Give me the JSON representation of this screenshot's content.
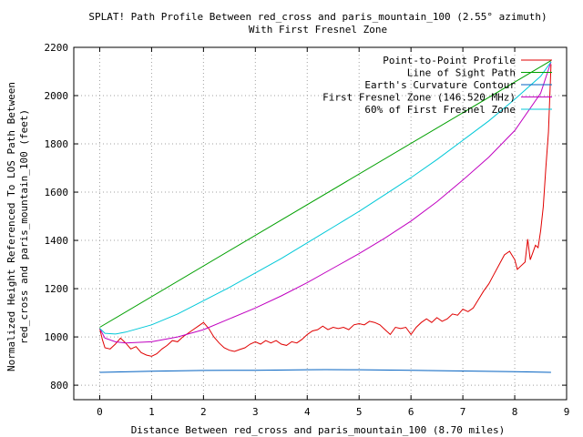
{
  "chart_data": {
    "type": "line",
    "title": "SPLAT! Path Profile Between red_cross and paris_mountain_100 (2.55° azimuth)",
    "subtitle": "With First Fresnel Zone",
    "xlabel": "Distance Between red_cross and paris_mountain_100 (8.70 miles)",
    "ylabel_line1": "Normalized Height Referenced To LOS Path Between",
    "ylabel_line2": "red_cross and paris_mountain_100 (feet)",
    "xlim": [
      -0.5,
      9
    ],
    "ylim": [
      740,
      2200
    ],
    "x_ticks": [
      0,
      1,
      2,
      3,
      4,
      5,
      6,
      7,
      8,
      9
    ],
    "y_ticks": [
      800,
      1000,
      1200,
      1400,
      1600,
      1800,
      2000,
      2200
    ],
    "grid": true,
    "grid_style": "dotted",
    "legend_position": "top-right",
    "series": [
      {
        "name": "Point-to-Point Profile",
        "color": "#e00000",
        "points": [
          [
            0.0,
            1035
          ],
          [
            0.05,
            990
          ],
          [
            0.1,
            955
          ],
          [
            0.2,
            950
          ],
          [
            0.3,
            970
          ],
          [
            0.4,
            995
          ],
          [
            0.5,
            975
          ],
          [
            0.6,
            950
          ],
          [
            0.7,
            960
          ],
          [
            0.8,
            935
          ],
          [
            0.9,
            925
          ],
          [
            1.0,
            920
          ],
          [
            1.1,
            930
          ],
          [
            1.2,
            950
          ],
          [
            1.3,
            965
          ],
          [
            1.4,
            985
          ],
          [
            1.5,
            980
          ],
          [
            1.6,
            1000
          ],
          [
            1.7,
            1015
          ],
          [
            1.8,
            1030
          ],
          [
            1.9,
            1045
          ],
          [
            2.0,
            1060
          ],
          [
            2.1,
            1035
          ],
          [
            2.2,
            1000
          ],
          [
            2.3,
            975
          ],
          [
            2.4,
            955
          ],
          [
            2.5,
            945
          ],
          [
            2.6,
            940
          ],
          [
            2.7,
            948
          ],
          [
            2.8,
            955
          ],
          [
            2.9,
            970
          ],
          [
            3.0,
            980
          ],
          [
            3.1,
            970
          ],
          [
            3.2,
            985
          ],
          [
            3.3,
            975
          ],
          [
            3.4,
            985
          ],
          [
            3.5,
            970
          ],
          [
            3.6,
            965
          ],
          [
            3.7,
            980
          ],
          [
            3.8,
            975
          ],
          [
            3.9,
            990
          ],
          [
            4.0,
            1010
          ],
          [
            4.1,
            1025
          ],
          [
            4.2,
            1030
          ],
          [
            4.3,
            1045
          ],
          [
            4.4,
            1030
          ],
          [
            4.5,
            1040
          ],
          [
            4.6,
            1035
          ],
          [
            4.7,
            1040
          ],
          [
            4.8,
            1030
          ],
          [
            4.9,
            1050
          ],
          [
            5.0,
            1055
          ],
          [
            5.1,
            1050
          ],
          [
            5.2,
            1065
          ],
          [
            5.3,
            1060
          ],
          [
            5.4,
            1050
          ],
          [
            5.5,
            1030
          ],
          [
            5.6,
            1010
          ],
          [
            5.7,
            1040
          ],
          [
            5.8,
            1035
          ],
          [
            5.9,
            1040
          ],
          [
            6.0,
            1010
          ],
          [
            6.1,
            1040
          ],
          [
            6.2,
            1060
          ],
          [
            6.3,
            1075
          ],
          [
            6.4,
            1060
          ],
          [
            6.5,
            1080
          ],
          [
            6.6,
            1065
          ],
          [
            6.7,
            1075
          ],
          [
            6.8,
            1095
          ],
          [
            6.9,
            1090
          ],
          [
            7.0,
            1115
          ],
          [
            7.1,
            1105
          ],
          [
            7.2,
            1120
          ],
          [
            7.3,
            1155
          ],
          [
            7.4,
            1190
          ],
          [
            7.5,
            1220
          ],
          [
            7.6,
            1260
          ],
          [
            7.7,
            1300
          ],
          [
            7.8,
            1340
          ],
          [
            7.9,
            1355
          ],
          [
            8.0,
            1320
          ],
          [
            8.05,
            1280
          ],
          [
            8.1,
            1290
          ],
          [
            8.2,
            1310
          ],
          [
            8.25,
            1405
          ],
          [
            8.3,
            1320
          ],
          [
            8.35,
            1350
          ],
          [
            8.4,
            1380
          ],
          [
            8.45,
            1370
          ],
          [
            8.5,
            1440
          ],
          [
            8.55,
            1540
          ],
          [
            8.6,
            1700
          ],
          [
            8.65,
            1850
          ],
          [
            8.7,
            2130
          ]
        ]
      },
      {
        "name": "Line of Sight Path",
        "color": "#00a000",
        "points": [
          [
            0.0,
            1040
          ],
          [
            8.7,
            2145
          ]
        ]
      },
      {
        "name": "Earth's Curvature Contour",
        "color": "#0060c0",
        "points": [
          [
            0.0,
            853
          ],
          [
            1.0,
            858
          ],
          [
            2.0,
            861
          ],
          [
            3.0,
            862
          ],
          [
            4.0,
            864
          ],
          [
            4.35,
            864.5
          ],
          [
            5.0,
            864
          ],
          [
            6.0,
            862
          ],
          [
            7.0,
            859
          ],
          [
            8.0,
            856
          ],
          [
            8.7,
            853
          ]
        ]
      },
      {
        "name": "First Fresnel Zone (146.520 MHz)",
        "color": "#c000c0",
        "points": [
          [
            0.0,
            1035
          ],
          [
            0.1,
            995
          ],
          [
            0.3,
            980
          ],
          [
            0.5,
            975
          ],
          [
            1.0,
            980
          ],
          [
            1.5,
            1000
          ],
          [
            2.0,
            1030
          ],
          [
            2.5,
            1075
          ],
          [
            3.0,
            1120
          ],
          [
            3.5,
            1170
          ],
          [
            4.0,
            1225
          ],
          [
            4.5,
            1285
          ],
          [
            5.0,
            1345
          ],
          [
            5.5,
            1410
          ],
          [
            6.0,
            1480
          ],
          [
            6.5,
            1560
          ],
          [
            7.0,
            1650
          ],
          [
            7.5,
            1745
          ],
          [
            8.0,
            1855
          ],
          [
            8.5,
            2010
          ],
          [
            8.7,
            2140
          ]
        ]
      },
      {
        "name": "60% of First Fresnel Zone",
        "color": "#00c8d8",
        "points": [
          [
            0.0,
            1035
          ],
          [
            0.1,
            1015
          ],
          [
            0.3,
            1012
          ],
          [
            0.5,
            1020
          ],
          [
            1.0,
            1050
          ],
          [
            1.5,
            1095
          ],
          [
            2.0,
            1150
          ],
          [
            2.5,
            1205
          ],
          [
            3.0,
            1265
          ],
          [
            3.5,
            1325
          ],
          [
            4.0,
            1390
          ],
          [
            4.5,
            1455
          ],
          [
            5.0,
            1520
          ],
          [
            5.5,
            1590
          ],
          [
            6.0,
            1660
          ],
          [
            6.5,
            1735
          ],
          [
            7.0,
            1815
          ],
          [
            7.5,
            1895
          ],
          [
            8.0,
            1985
          ],
          [
            8.5,
            2080
          ],
          [
            8.7,
            2140
          ]
        ]
      }
    ]
  }
}
